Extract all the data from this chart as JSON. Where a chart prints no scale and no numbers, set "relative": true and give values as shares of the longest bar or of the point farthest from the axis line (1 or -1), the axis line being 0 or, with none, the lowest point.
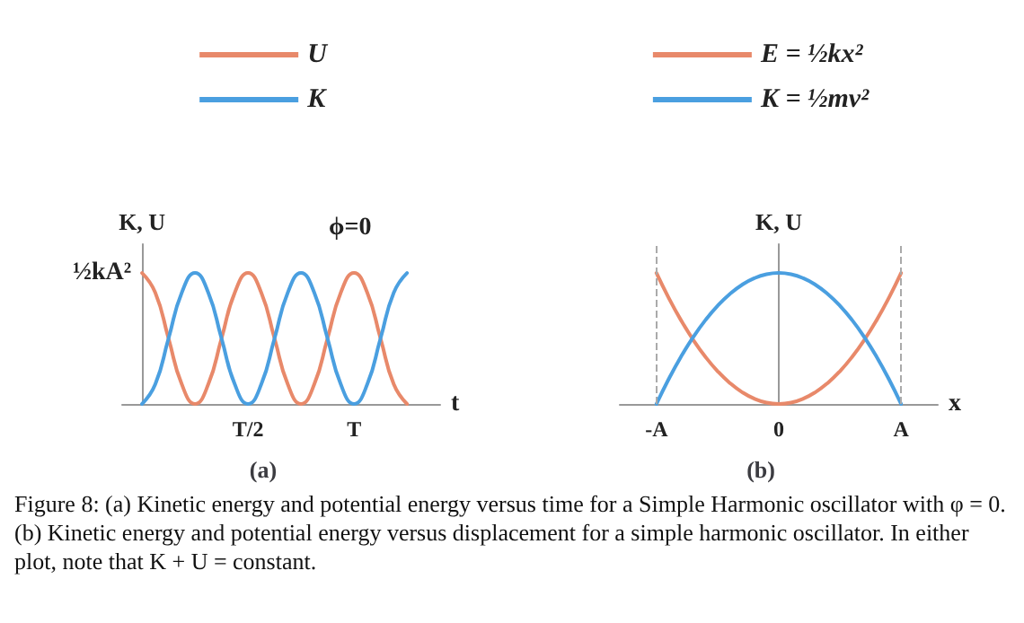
{
  "chart_data": [
    {
      "type": "line",
      "title": "(a)",
      "xlabel": "t",
      "ylabel": "K, U",
      "relative": true,
      "categories": [
        null,
        null,
        null,
        null,
        null,
        null,
        null,
        null,
        "T/2",
        null,
        null,
        null,
        null,
        null,
        null,
        null,
        "T",
        null,
        null,
        null,
        null
      ],
      "series": [
        {
          "name": "U",
          "color": "#e8896a",
          "values": [
            1,
            0.85,
            0.5,
            0.15,
            0,
            0.15,
            0.5,
            0.85,
            1,
            0.85,
            0.5,
            0.15,
            0,
            0.15,
            0.5,
            0.85,
            1,
            0.85,
            0.5,
            0.15,
            0
          ]
        },
        {
          "name": "K",
          "color": "#4a9fe0",
          "values": [
            0,
            0.15,
            0.5,
            0.85,
            1,
            0.85,
            0.5,
            0.15,
            0,
            0.15,
            0.5,
            0.85,
            1,
            0.85,
            0.5,
            0.15,
            0,
            0.15,
            0.5,
            0.85,
            1
          ]
        }
      ],
      "annotations": [
        "ϕ=0",
        "½kA²"
      ],
      "marker": "none",
      "line_style": "solid",
      "grid": false,
      "legend": "top"
    },
    {
      "type": "line",
      "title": "(b)",
      "xlabel": "x",
      "ylabel": "K, U",
      "relative": true,
      "categories": [
        "-A",
        null,
        null,
        null,
        null,
        null,
        null,
        null,
        null,
        null,
        "0",
        null,
        null,
        null,
        null,
        null,
        null,
        null,
        null,
        null,
        "A"
      ],
      "series": [
        {
          "name": "E = ½kx²",
          "color": "#e8896a",
          "values": [
            1,
            0.81,
            0.64,
            0.49,
            0.36,
            0.25,
            0.16,
            0.09,
            0.04,
            0.01,
            0,
            0.01,
            0.04,
            0.09,
            0.16,
            0.25,
            0.36,
            0.49,
            0.64,
            0.81,
            1
          ]
        },
        {
          "name": "K = ½mv²",
          "color": "#4a9fe0",
          "values": [
            0,
            0.19,
            0.36,
            0.51,
            0.64,
            0.75,
            0.84,
            0.91,
            0.96,
            0.99,
            1,
            0.99,
            0.96,
            0.91,
            0.84,
            0.75,
            0.64,
            0.51,
            0.36,
            0.19,
            0
          ]
        }
      ],
      "ref_lines": [
        {
          "axis": "x",
          "value": "-A",
          "label": null,
          "color": "#aaaaaa",
          "line_style": "dashed"
        },
        {
          "axis": "x",
          "value": "A",
          "label": null,
          "color": "#aaaaaa",
          "line_style": "dashed"
        }
      ],
      "marker": "none",
      "line_style": "solid",
      "grid": false,
      "legend": "top"
    },
    {
      "type": "other",
      "annotations": [
        "Figure 8: (a) Kinetic energy and potential energy versus time for a Simple Harmonic oscillator with φ = 0. (b) Kinetic energy and potential energy versus displacement for a simple harmonic oscillator. In either plot, note that K + U = constant."
      ]
    }
  ]
}
